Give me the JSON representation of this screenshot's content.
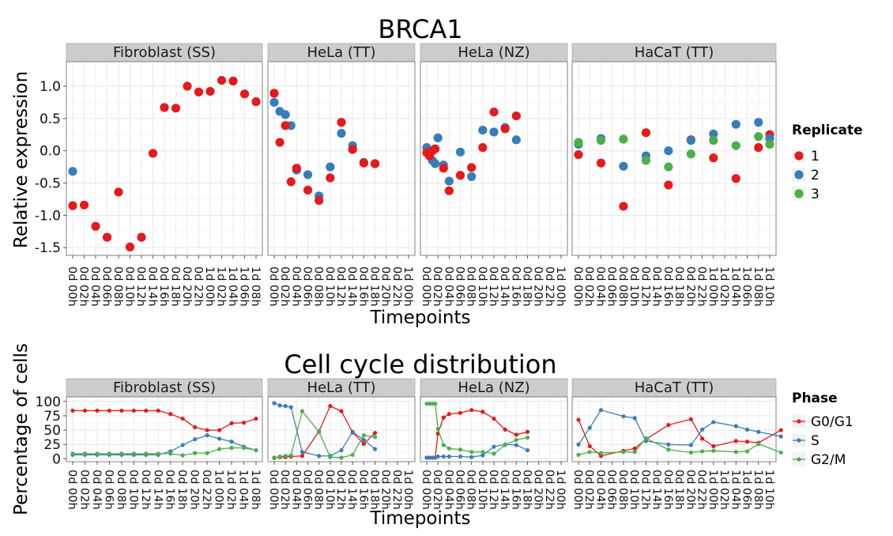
{
  "chart_data": [
    {
      "type": "scatter",
      "title": "BRCA1",
      "xlabel": "Timepoints",
      "ylabel": "Relative expression",
      "ylim": [
        -1.62,
        1.38
      ],
      "yticks": [
        -1.5,
        -1.0,
        -0.5,
        0.0,
        0.5,
        1.0
      ],
      "ytick_labels": [
        "-1.5",
        "-1.0",
        "-0.5",
        "0.0",
        "0.5",
        "1.0"
      ],
      "grid": true,
      "legend": {
        "title": "Replicate",
        "position": "right",
        "entries": [
          {
            "label": "1",
            "color": "#E41A1C"
          },
          {
            "label": "2",
            "color": "#377EB8"
          },
          {
            "label": "3",
            "color": "#4DAF4A"
          }
        ]
      },
      "panels": [
        {
          "name": "Fibroblast (SS)",
          "timepoints": [
            "0d 00h",
            "0d 02h",
            "0d 04h",
            "0d 06h",
            "0d 08h",
            "0d 10h",
            "0d 12h",
            "0d 14h",
            "0d 16h",
            "0d 18h",
            "0d 20h",
            "0d 22h",
            "1d 00h",
            "1d 02h",
            "1d 04h",
            "1d 06h",
            "1d 08h"
          ],
          "series": [
            {
              "name": "2",
              "values": [
                -0.32,
                null,
                null,
                null,
                null,
                null,
                null,
                null,
                null,
                null,
                null,
                null,
                null,
                null,
                null,
                null,
                null
              ]
            },
            {
              "name": "1",
              "values": [
                -0.85,
                -0.84,
                -1.17,
                -1.34,
                -0.64,
                -1.49,
                -1.34,
                -0.04,
                0.67,
                0.66,
                1.0,
                0.91,
                0.92,
                1.09,
                1.08,
                0.88,
                0.76
              ]
            }
          ]
        },
        {
          "name": "HeLa (TT)",
          "timepoints": [
            "0d 00h",
            "0d 02h",
            "0d 04h",
            "0d 06h",
            "0d 08h",
            "0d 10h",
            "0d 12h",
            "0d 14h",
            "0d 16h",
            "0d 18h",
            "0d 20h",
            "0d 22h",
            "1d 00h"
          ],
          "series": [
            {
              "name": "2",
              "x": [
                0,
                0.5,
                1,
                1.5,
                2,
                3,
                4,
                5,
                6,
                7,
                8,
                9
              ],
              "values": [
                0.75,
                0.61,
                0.56,
                0.39,
                -0.3,
                -0.37,
                -0.7,
                -0.25,
                0.27,
                0.08,
                -0.18,
                -0.2
              ]
            },
            {
              "name": "1",
              "x": [
                0,
                0.5,
                1,
                1.5,
                2,
                3,
                4,
                5,
                6,
                7,
                8,
                9
              ],
              "values": [
                0.89,
                0.13,
                0.39,
                -0.48,
                -0.27,
                -0.61,
                -0.77,
                -0.42,
                0.44,
                0.02,
                -0.19,
                -0.2
              ]
            }
          ]
        },
        {
          "name": "HeLa (NZ)",
          "timepoints": [
            "0d 00h",
            "0d 02h",
            "0d 04h",
            "0d 06h",
            "0d 08h",
            "0d 10h",
            "0d 12h",
            "0d 14h",
            "0d 16h",
            "0d 18h",
            "0d 20h",
            "0d 22h",
            "1d 00h"
          ],
          "series": [
            {
              "name": "2",
              "x": [
                0,
                0.25,
                0.5,
                0.75,
                1,
                1.5,
                2,
                3,
                4,
                5,
                6,
                7,
                8,
                9
              ],
              "values": [
                0.05,
                -0.05,
                -0.15,
                -0.2,
                0.2,
                -0.22,
                -0.47,
                -0.02,
                -0.4,
                0.32,
                0.29,
                0.36,
                0.17,
                null
              ]
            },
            {
              "name": "1",
              "x": [
                0,
                0.25,
                0.5,
                0.75,
                1,
                1.5,
                2,
                3,
                4,
                5,
                6,
                7,
                8,
                9
              ],
              "values": [
                -0.03,
                -0.08,
                0.0,
                0.03,
                null,
                -0.27,
                -0.62,
                -0.38,
                -0.26,
                0.05,
                0.6,
                0.34,
                0.54,
                null
              ]
            }
          ]
        },
        {
          "name": "HaCaT (TT)",
          "timepoints": [
            "0d 00h",
            "0d 02h",
            "0d 04h",
            "0d 06h",
            "0d 08h",
            "0d 10h",
            "0d 12h",
            "0d 14h",
            "0d 16h",
            "0d 18h",
            "0d 20h",
            "0d 22h",
            "1d 00h",
            "1d 02h",
            "1d 04h",
            "1d 06h",
            "1d 08h",
            "1d 10h"
          ],
          "series": [
            {
              "name": "1",
              "x": [
                0,
                2,
                4,
                6,
                8,
                10,
                12,
                14,
                16,
                17
              ],
              "values": [
                -0.06,
                -0.19,
                -0.86,
                0.28,
                -0.53,
                0.17,
                -0.11,
                -0.43,
                0.05,
                0.25
              ]
            },
            {
              "name": "2",
              "x": [
                0,
                2,
                4,
                6,
                8,
                10,
                12,
                14,
                16,
                17
              ],
              "values": [
                0.1,
                0.19,
                -0.24,
                -0.08,
                0.0,
                0.16,
                0.26,
                0.41,
                0.44,
                0.19
              ]
            },
            {
              "name": "3",
              "x": [
                0,
                2,
                4,
                6,
                8,
                10,
                12,
                14,
                16,
                17
              ],
              "values": [
                0.13,
                0.16,
                0.18,
                -0.15,
                -0.25,
                -0.05,
                0.16,
                0.08,
                0.22,
                0.1
              ]
            }
          ]
        }
      ]
    },
    {
      "type": "line",
      "title": "Cell cycle distribution",
      "xlabel": "Timepoints",
      "ylabel": "Percentage of cells",
      "ylim": [
        -5,
        108
      ],
      "yticks": [
        0,
        25,
        50,
        75,
        100
      ],
      "ytick_labels": [
        "0",
        "25",
        "50",
        "75",
        "100"
      ],
      "grid": true,
      "legend": {
        "title": "Phase",
        "position": "right",
        "entries": [
          {
            "label": "G0/G1",
            "color": "#E41A1C"
          },
          {
            "label": "S",
            "color": "#377EB8"
          },
          {
            "label": "G2/M",
            "color": "#4DAF4A"
          }
        ]
      },
      "panels": [
        {
          "name": "Fibroblast (SS)",
          "timepoints": [
            "0d 00h",
            "0d 02h",
            "0d 04h",
            "0d 06h",
            "0d 08h",
            "0d 10h",
            "0d 12h",
            "0d 14h",
            "0d 16h",
            "0d 18h",
            "0d 20h",
            "0d 22h",
            "1d 00h",
            "1d 02h",
            "1d 04h",
            "1d 08h"
          ],
          "series": [
            {
              "name": "G0/G1",
              "values": [
                84,
                84,
                84,
                84,
                84,
                84,
                84,
                84,
                78,
                70,
                55,
                50,
                50,
                62,
                63,
                70
              ]
            },
            {
              "name": "S",
              "values": [
                7,
                7,
                7,
                7,
                7,
                7,
                7,
                7,
                13,
                24,
                34,
                41,
                35,
                30,
                21,
                15
              ]
            },
            {
              "name": "G2/M",
              "values": [
                9,
                9,
                9,
                9,
                9,
                9,
                9,
                9,
                9,
                6,
                10,
                10,
                17,
                19,
                19,
                15
              ]
            }
          ]
        },
        {
          "name": "HeLa (TT)",
          "timepoints": [
            "0d 00h",
            "0d 02h",
            "0d 04h",
            "0d 06h",
            "0d 08h",
            "0d 10h",
            "0d 12h",
            "0d 14h",
            "0d 16h",
            "0d 18h",
            "0d 20h",
            "0d 22h",
            "1d 00h"
          ],
          "series": [
            {
              "name": "G0/G1",
              "x": [
                0,
                0.5,
                1,
                1.5,
                2.5,
                4,
                5,
                6,
                7,
                8,
                9
              ],
              "values": [
                2,
                3,
                3,
                4,
                5,
                48,
                92,
                83,
                46,
                26,
                45
              ]
            },
            {
              "name": "S",
              "x": [
                0,
                0.5,
                1,
                1.5,
                2.5,
                4,
                5,
                6,
                7,
                8,
                9
              ],
              "values": [
                97,
                93,
                92,
                90,
                12,
                5,
                5,
                15,
                47,
                33,
                17
              ]
            },
            {
              "name": "G2/M",
              "x": [
                0,
                0.5,
                1,
                1.5,
                2.5,
                4,
                5,
                6,
                7,
                8,
                9
              ],
              "values": [
                1,
                4,
                5,
                6,
                83,
                47,
                3,
                2,
                7,
                41,
                38
              ]
            }
          ]
        },
        {
          "name": "HeLa (NZ)",
          "timepoints": [
            "0d 00h",
            "0d 02h",
            "0d 04h",
            "0d 06h",
            "0d 08h",
            "0d 10h",
            "0d 12h",
            "0d 14h",
            "0d 16h",
            "0d 18h",
            "0d 20h",
            "0d 22h",
            "1d 00h"
          ],
          "series": [
            {
              "name": "G0/G1",
              "x": [
                0,
                0.25,
                0.5,
                0.75,
                1,
                1.5,
                2,
                3,
                4,
                5,
                6,
                7,
                8,
                9
              ],
              "values": [
                2,
                2,
                2,
                2,
                44,
                72,
                78,
                80,
                85,
                82,
                70,
                51,
                42,
                47
              ]
            },
            {
              "name": "S",
              "x": [
                0,
                0.25,
                0.5,
                0.75,
                1,
                1.5,
                2,
                3,
                4,
                5,
                6,
                7,
                8,
                9
              ],
              "values": [
                2,
                2,
                2,
                2,
                4,
                4,
                4,
                4,
                3,
                6,
                21,
                25,
                24,
                15
              ]
            },
            {
              "name": "G2/M",
              "x": [
                0,
                0.25,
                0.5,
                0.75,
                1,
                1.5,
                2,
                3,
                4,
                5,
                6,
                7,
                8,
                9
              ],
              "values": [
                96,
                96,
                96,
                96,
                52,
                24,
                18,
                16,
                12,
                12,
                9,
                24,
                33,
                37
              ]
            }
          ]
        },
        {
          "name": "HaCaT (TT)",
          "timepoints": [
            "0d 00h",
            "0d 02h",
            "0d 04h",
            "0d 06h",
            "0d 08h",
            "0d 10h",
            "0d 12h",
            "0d 14h",
            "0d 16h",
            "0d 18h",
            "0d 20h",
            "0d 22h",
            "1d 00h",
            "1d 02h",
            "1d 04h",
            "1d 06h",
            "1d 08h",
            "1d 10h"
          ],
          "series": [
            {
              "name": "G0/G1",
              "x": [
                0,
                1,
                2,
                4,
                5,
                6,
                8,
                10,
                11,
                12,
                14,
                15,
                16,
                18
              ],
              "values": [
                68,
                22,
                5,
                14,
                18,
                34,
                59,
                69,
                35,
                22,
                31,
                30,
                28,
                50
              ]
            },
            {
              "name": "S",
              "x": [
                0,
                1,
                2,
                4,
                5,
                6,
                8,
                10,
                11,
                12,
                14,
                15,
                16,
                18
              ],
              "values": [
                25,
                54,
                85,
                74,
                71,
                31,
                25,
                24,
                51,
                64,
                57,
                51,
                47,
                39
              ]
            },
            {
              "name": "G2/M",
              "x": [
                0,
                1,
                2,
                4,
                5,
                6,
                8,
                10,
                11,
                12,
                14,
                15,
                16,
                18
              ],
              "values": [
                7,
                12,
                10,
                12,
                12,
                36,
                16,
                11,
                13,
                14,
                12,
                13,
                26,
                11
              ]
            }
          ]
        }
      ]
    }
  ]
}
